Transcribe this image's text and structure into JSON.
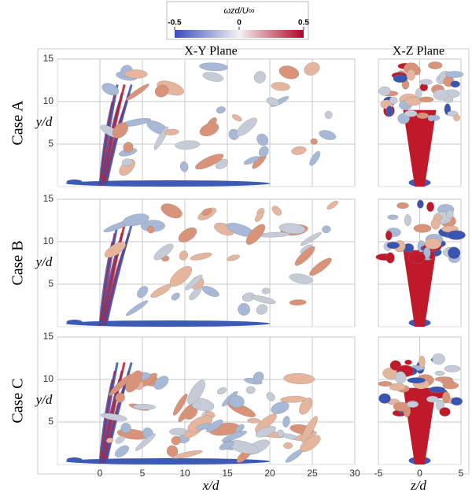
{
  "colorbar": {
    "label": "ωzd/U∞",
    "ticks": [
      {
        "value": -0.5,
        "label": "-0.5"
      },
      0,
      0.5
    ],
    "lim": [
      -0.5,
      0.5
    ]
  },
  "columns": [
    "X-Y Plane",
    "X-Z Plane"
  ],
  "rows": [
    "Case A",
    "Case B",
    "Case C"
  ],
  "y_axis": {
    "label": "y/d",
    "lim": [
      0,
      15
    ],
    "ticks": [
      5,
      10,
      15
    ]
  },
  "xy_x_axis": {
    "label": "x/d",
    "lim": [
      -5,
      30
    ],
    "ticks": [
      0,
      5,
      10,
      15,
      20,
      25,
      30
    ]
  },
  "xz_x_axis": {
    "label": "z/d",
    "lim": [
      -5,
      5
    ],
    "ticks": [
      {
        "value": -5,
        "label": "-5"
      },
      0,
      5
    ]
  }
}
